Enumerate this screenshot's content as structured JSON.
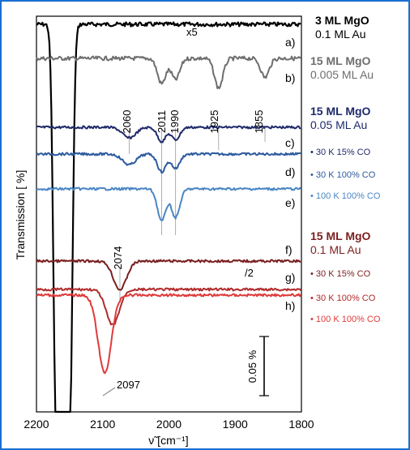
{
  "chart_data": {
    "type": "line",
    "xlabel": "ν̃ [cm⁻¹]",
    "ylabel": "Transmission [ %]",
    "xlim": [
      2200,
      1800
    ],
    "x_ticks": [
      "2200",
      "2100",
      "2000",
      "1900",
      "1800"
    ],
    "grid": false,
    "scale_bar_label": "0.05 %",
    "trace_labels": [
      "a)",
      "b)",
      "c)",
      "d)",
      "e)",
      "f)",
      "g)",
      "h)"
    ],
    "trace_annotations": [
      "x5",
      "/2"
    ],
    "vertical_markers": [
      "2060",
      "2011",
      "1990",
      "1925",
      "1855",
      "2074"
    ],
    "peak_label": "2097",
    "legend_groups": [
      {
        "title": "3 ML MgO",
        "sub": "0.1 ML Au",
        "color": "#000000"
      },
      {
        "title": "15 ML MgO",
        "sub": "0.005 ML Au",
        "color": "#6e6e6e"
      },
      {
        "title": "15 ML MgO",
        "sub": "0.05 ML Au",
        "color": "#1f2a6b"
      },
      {
        "title": "15 ML MgO",
        "sub": "0.1 ML Au",
        "color": "#7a1f1f"
      }
    ],
    "legend_entries": [
      {
        "label": "• 30 K 15% CO",
        "color": "#1f2a6b"
      },
      {
        "label": "• 30 K 100% CO",
        "color": "#2d5a9e"
      },
      {
        "label": "• 100 K 100% CO",
        "color": "#4a86c4"
      },
      {
        "label": "• 30 K 15% CO",
        "color": "#7a1f1f"
      },
      {
        "label": "• 30 K 100% CO",
        "color": "#b02a2a"
      },
      {
        "label": "• 100 K 100% CO",
        "color": "#e03a3a"
      }
    ],
    "series": [
      {
        "trace": "a",
        "color": "#000000",
        "features": [
          {
            "x": 2170,
            "depth": 1.0
          },
          {
            "x": 2150,
            "depth": 1.0
          }
        ]
      },
      {
        "trace": "b",
        "color": "#6e6e6e",
        "features": [
          {
            "x": 2011,
            "depth": 0.12
          },
          {
            "x": 1990,
            "depth": 0.1
          },
          {
            "x": 1925,
            "depth": 0.14
          },
          {
            "x": 1855,
            "depth": 0.09
          }
        ]
      },
      {
        "trace": "c",
        "color": "#1f2a6b",
        "features": [
          {
            "x": 2060,
            "depth": 0.06
          },
          {
            "x": 2011,
            "depth": 0.08
          },
          {
            "x": 1990,
            "depth": 0.07
          }
        ]
      },
      {
        "trace": "d",
        "color": "#2d5a9e",
        "features": [
          {
            "x": 2060,
            "depth": 0.06
          },
          {
            "x": 2011,
            "depth": 0.1
          },
          {
            "x": 1990,
            "depth": 0.08
          }
        ]
      },
      {
        "trace": "e",
        "color": "#4a86c4",
        "features": [
          {
            "x": 2011,
            "depth": 0.18
          },
          {
            "x": 1990,
            "depth": 0.16
          }
        ]
      },
      {
        "trace": "f",
        "color": "#7a1f1f",
        "features": [
          {
            "x": 2074,
            "depth": 0.16
          }
        ]
      },
      {
        "trace": "g",
        "color": "#b02a2a",
        "features": [
          {
            "x": 2085,
            "depth": 0.2
          }
        ]
      },
      {
        "trace": "h",
        "color": "#e03a3a",
        "features": [
          {
            "x": 2097,
            "depth": 0.32
          }
        ]
      }
    ]
  }
}
